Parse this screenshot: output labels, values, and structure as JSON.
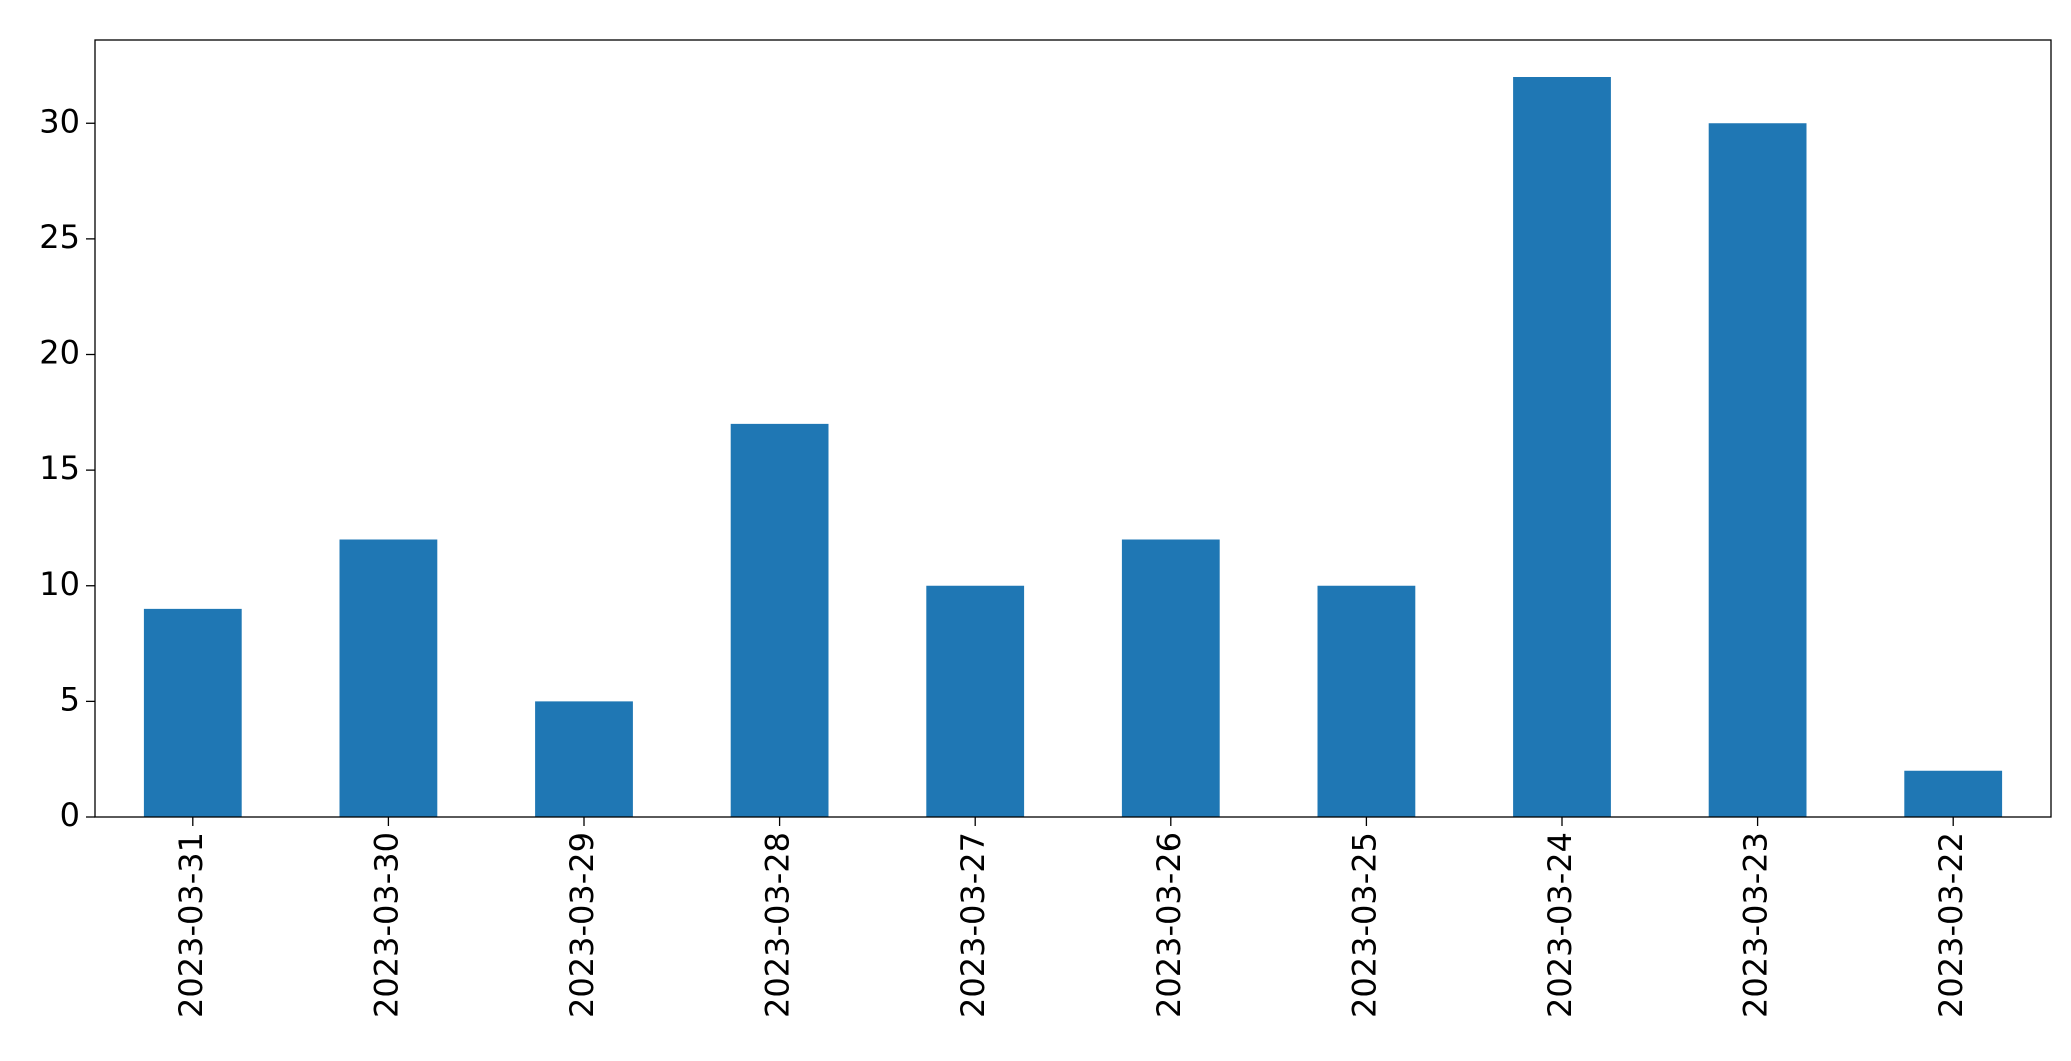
{
  "chart_data": {
    "type": "bar",
    "categories": [
      "2023-03-31",
      "2023-03-30",
      "2023-03-29",
      "2023-03-28",
      "2023-03-27",
      "2023-03-26",
      "2023-03-25",
      "2023-03-24",
      "2023-03-23",
      "2023-03-22"
    ],
    "values": [
      9,
      12,
      5,
      17,
      10,
      12,
      10,
      32,
      30,
      2
    ],
    "color": "#1f77b4",
    "ylim": [
      0,
      33.6
    ],
    "yticks": [
      0,
      5,
      10,
      15,
      20,
      25,
      30
    ],
    "grid": false
  }
}
